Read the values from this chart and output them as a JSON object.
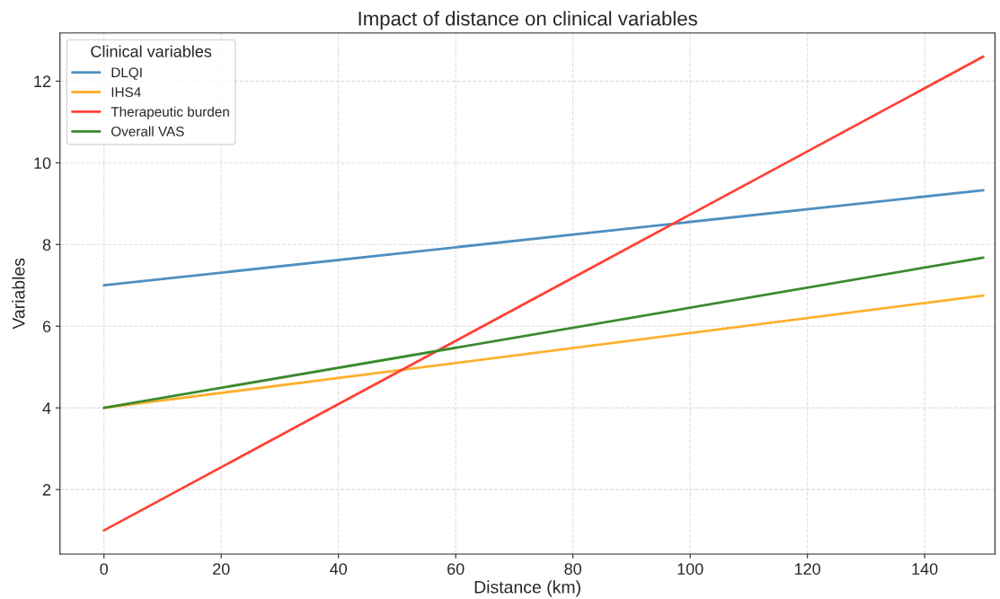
{
  "chart_data": {
    "type": "line",
    "title": "Impact of distance on clinical variables",
    "xlabel": "Distance (km)",
    "ylabel": "Variables",
    "legend_title": "Clinical variables",
    "x": [
      0,
      150
    ],
    "series": [
      {
        "name": "DLQI",
        "color": "#4f8fc0",
        "values": [
          7.0,
          9.33
        ]
      },
      {
        "name": "IHS4",
        "color": "#ffb02e",
        "values": [
          4.0,
          6.75
        ]
      },
      {
        "name": "Therapeutic burden",
        "color": "#ff4136",
        "values": [
          1.0,
          12.6
        ]
      },
      {
        "name": "Overall VAS",
        "color": "#3a8a2e",
        "values": [
          4.0,
          7.68
        ]
      }
    ],
    "xlim": [
      -7.5,
      152
    ],
    "ylim": [
      0.42,
      13.18
    ],
    "xticks": [
      0,
      20,
      40,
      60,
      80,
      100,
      120,
      140
    ],
    "yticks": [
      2,
      4,
      6,
      8,
      10,
      12
    ],
    "grid": true,
    "legend": "top left",
    "marker": "none",
    "line_style": "solid"
  }
}
